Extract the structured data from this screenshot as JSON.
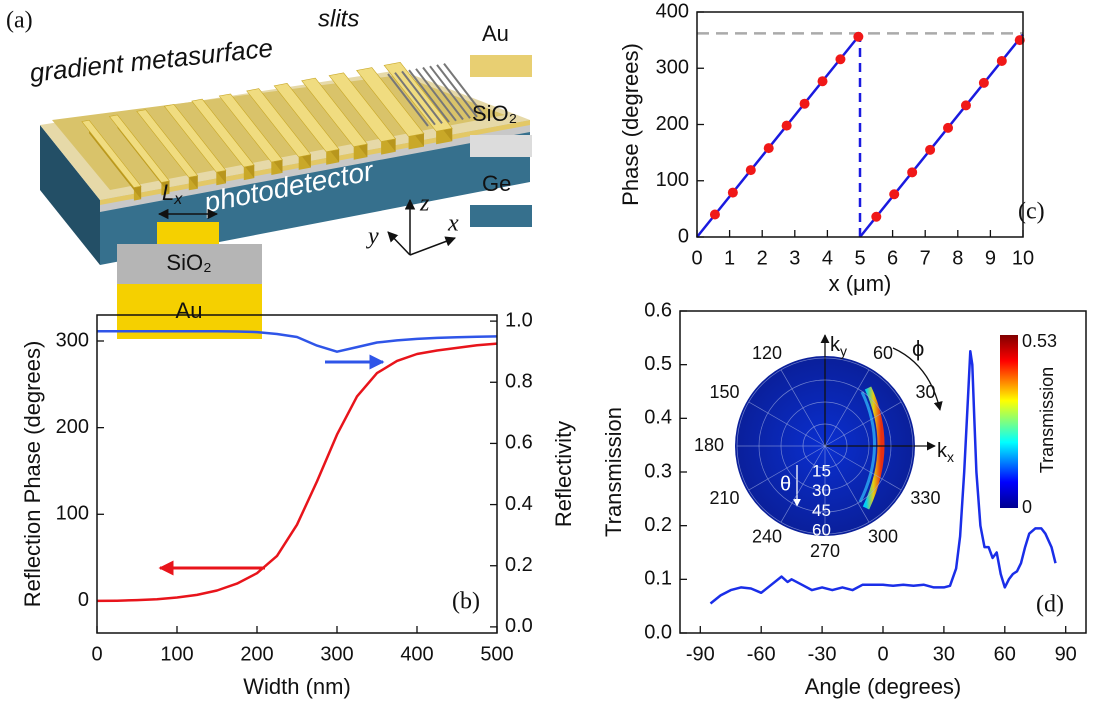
{
  "panel_a": {
    "label": "(a)",
    "metasurface_label": "gradient metasurface",
    "slits_label": "slits",
    "substrate_label": "photodetector",
    "legend": [
      "Au",
      "SiO₂",
      "Ge"
    ],
    "axes": [
      "z",
      "y",
      "x"
    ]
  },
  "chart_data": [
    {
      "type": "line",
      "panel_label": "(b)",
      "xlabel": "Width (nm)",
      "ylabel": "Reflection Phase (degrees)",
      "y2label": "Reflectivity",
      "xlim": [
        0,
        500
      ],
      "xticks": [
        0,
        100,
        200,
        300,
        400,
        500
      ],
      "ylim": [
        -37,
        330
      ],
      "yticks": [
        0,
        100,
        200,
        300
      ],
      "y2lim": [
        -0.02,
        1.02
      ],
      "y2ticks": [
        {
          "value": 0,
          "label": "0.0"
        },
        0.2,
        0.4,
        0.6,
        0.8,
        {
          "value": 1,
          "label": "1.0"
        }
      ],
      "x": [
        0,
        25,
        50,
        75,
        100,
        125,
        150,
        175,
        200,
        225,
        250,
        275,
        300,
        325,
        350,
        375,
        400,
        425,
        450,
        475,
        500
      ],
      "series": [
        {
          "color": "#e8141b",
          "values": [
            0,
            0.3,
            1,
            2,
            4,
            7,
            12,
            20,
            32,
            52,
            88,
            138,
            192,
            236,
            263,
            277,
            285,
            289,
            292,
            295,
            297
          ]
        },
        {
          "color": "#2f55e8",
          "axis": "y2",
          "values": [
            0.967,
            0.967,
            0.967,
            0.967,
            0.967,
            0.967,
            0.967,
            0.966,
            0.964,
            0.958,
            0.948,
            0.92,
            0.9,
            0.915,
            0.93,
            0.937,
            0.942,
            0.945,
            0.947,
            0.949,
            0.95
          ]
        }
      ],
      "inset": {
        "width_symbol": "L",
        "width_subscript": "x",
        "top_layer": "SiO₂",
        "bottom_layer": "Au"
      }
    },
    {
      "type": "line",
      "panel_label": "(c)",
      "xlabel": "x (μm)",
      "ylabel": "Phase (degrees)",
      "xlim": [
        0,
        10
      ],
      "xticks": [
        0,
        1,
        2,
        3,
        4,
        5,
        6,
        7,
        8,
        9,
        10
      ],
      "ylim": [
        0,
        400
      ],
      "yticks": [
        0,
        100,
        200,
        300,
        400
      ],
      "reference_lines": [
        {
          "y": 362,
          "color": "#aaaaaa"
        }
      ],
      "series": [
        {
          "color": "#1a1adf",
          "style": "line",
          "x": [
            0,
            5
          ],
          "values": [
            0,
            360
          ]
        },
        {
          "color": "#1a1adf",
          "style": "line",
          "x": [
            5,
            10
          ],
          "values": [
            0,
            360
          ]
        },
        {
          "color": "#1a1adf",
          "style": "dashed",
          "x": [
            5,
            5
          ],
          "values": [
            0,
            360
          ]
        },
        {
          "color": "#f01818",
          "style": "markers",
          "x": [
            0.55,
            1.1,
            1.65,
            2.2,
            2.75,
            3.3,
            3.85,
            4.4,
            4.95,
            5.5,
            6.05,
            6.6,
            7.15,
            7.7,
            8.25,
            8.8,
            9.35,
            9.9
          ],
          "values": [
            40,
            79,
            119,
            158,
            198,
            237,
            277,
            316,
            356,
            36,
            76,
            115,
            155,
            194,
            234,
            274,
            313,
            350
          ]
        }
      ]
    },
    {
      "type": "line",
      "panel_label": "(d)",
      "xlabel": "Angle (degrees)",
      "ylabel": "Transmission",
      "xlim": [
        -100,
        100
      ],
      "xticks": [
        -90,
        -60,
        -30,
        0,
        30,
        60,
        90
      ],
      "ylim": [
        0,
        0.6
      ],
      "yticks": [
        {
          "value": 0,
          "label": "0.0"
        },
        0.1,
        0.2,
        0.3,
        0.4,
        0.5,
        0.6
      ],
      "x": [
        -85,
        -80,
        -75,
        -70,
        -65,
        -60,
        -55,
        -50,
        -47,
        -45,
        -40,
        -35,
        -30,
        -25,
        -20,
        -15,
        -10,
        -5,
        0,
        5,
        10,
        15,
        20,
        25,
        30,
        33,
        36,
        38,
        40,
        42,
        43,
        44,
        45,
        46,
        48,
        50,
        52,
        54,
        56,
        58,
        60,
        62,
        64,
        66,
        68,
        70,
        72,
        75,
        78,
        80,
        83,
        85
      ],
      "series": [
        {
          "color": "#1a2ee8",
          "values": [
            0.055,
            0.07,
            0.08,
            0.085,
            0.083,
            0.075,
            0.09,
            0.105,
            0.095,
            0.1,
            0.09,
            0.08,
            0.085,
            0.08,
            0.085,
            0.08,
            0.09,
            0.09,
            0.09,
            0.088,
            0.09,
            0.088,
            0.09,
            0.085,
            0.085,
            0.088,
            0.12,
            0.18,
            0.3,
            0.45,
            0.525,
            0.5,
            0.4,
            0.3,
            0.2,
            0.16,
            0.16,
            0.14,
            0.15,
            0.11,
            0.085,
            0.1,
            0.11,
            0.115,
            0.13,
            0.16,
            0.185,
            0.195,
            0.195,
            0.185,
            0.16,
            0.13
          ]
        }
      ],
      "inset": {
        "kx_symbol": "k",
        "kx_subscript": "x",
        "ky_symbol": "k",
        "ky_subscript": "y",
        "phi": "ϕ",
        "theta": "θ",
        "angle_labels": [
          30,
          60,
          120,
          150,
          180,
          210,
          240,
          270,
          300,
          330
        ],
        "theta_labels": [
          15,
          30,
          45,
          60
        ],
        "colorbar": {
          "label": "Transmission",
          "min": 0,
          "max": 0.53
        }
      }
    }
  ]
}
